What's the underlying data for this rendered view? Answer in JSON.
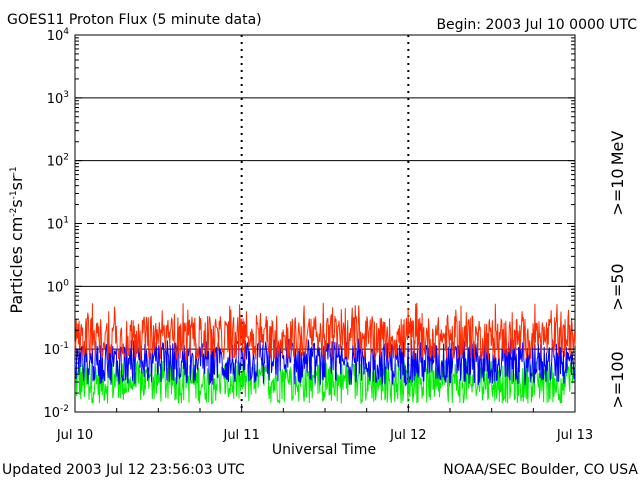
{
  "chart_data": {
    "type": "line",
    "title": "GOES11 Proton Flux (5 minute data)",
    "begin_label": "Begin: 2003 Jul 10 0000 UTC",
    "xlabel": "Universal Time",
    "ylabel": "Particles cm",
    "ylabel_parts": {
      "base": "Particles cm",
      "sup1": "-2",
      "mid1": "s",
      "sup2": "-1",
      "mid2": "sr",
      "sup3": "-1"
    },
    "x_ticks": [
      "Jul 10",
      "Jul 11",
      "Jul 12",
      "Jul 13"
    ],
    "x_range_days": [
      0,
      3
    ],
    "y_scale": "log",
    "ylim": [
      0.01,
      10000
    ],
    "y_ticks": [
      {
        "base": "10",
        "exp": "4"
      },
      {
        "base": "10",
        "exp": "3"
      },
      {
        "base": "10",
        "exp": "2"
      },
      {
        "base": "10",
        "exp": "1"
      },
      {
        "base": "10",
        "exp": "0"
      },
      {
        "base": "10",
        "exp": "-1"
      },
      {
        "base": "10",
        "exp": "-2"
      }
    ],
    "threshold_lines": [
      {
        "value": 1000,
        "style": "solid"
      },
      {
        "value": 100,
        "style": "solid"
      },
      {
        "value": 10,
        "style": "dashed"
      },
      {
        "value": 1,
        "style": "solid"
      },
      {
        "value": 0.1,
        "style": "solid"
      }
    ],
    "units_label": "MeV",
    "series": [
      {
        "name": ">=10",
        "color": "#ff2a00",
        "typical": 0.15,
        "spike_max": 0.55
      },
      {
        "name": ">=50",
        "color": "#0000ff",
        "typical": 0.06,
        "spike_max": 0.15
      },
      {
        "name": ">=100",
        "color": "#00ee00",
        "typical": 0.03,
        "spike_max": 0.06
      }
    ]
  },
  "footer": {
    "updated": "Updated 2003 Jul 12 23:56:03 UTC",
    "credit": "NOAA/SEC Boulder, CO USA"
  }
}
